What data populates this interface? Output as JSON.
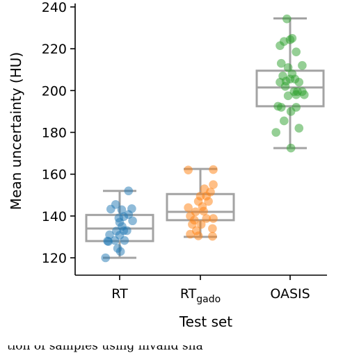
{
  "chart_data": {
    "type": "box-strip",
    "title": "",
    "xlabel": "Test set",
    "ylabel": "Mean uncertainty (HU)",
    "ylim": [
      112,
      242
    ],
    "yticks": [
      120,
      140,
      160,
      180,
      200,
      220,
      240
    ],
    "grid": false,
    "legend": "none",
    "categories": [
      {
        "label": "RT",
        "sub": ""
      },
      {
        "label": "RT",
        "sub": "gado"
      },
      {
        "label": "OASIS",
        "sub": ""
      }
    ],
    "series": [
      {
        "color": "#1f77b4",
        "box": {
          "whisker_low": 120,
          "q1": 128,
          "median": 134,
          "q3": 140.5,
          "whisker_high": 152
        },
        "points": [
          [
            -0.22,
            143.3
          ],
          [
            -0.1,
            145.5
          ],
          [
            0.05,
            143.0
          ],
          [
            0.3,
            143.5
          ],
          [
            0.1,
            139.7
          ],
          [
            0.22,
            140.7
          ],
          [
            -0.02,
            139.0
          ],
          [
            0.0,
            137.0
          ],
          [
            0.32,
            137.7
          ],
          [
            0.06,
            135.0
          ],
          [
            0.1,
            133.0
          ],
          [
            0.18,
            133.0
          ],
          [
            -0.25,
            131.0
          ],
          [
            -0.08,
            132.8
          ],
          [
            0.0,
            130.8
          ],
          [
            -0.12,
            128.3
          ],
          [
            -0.28,
            127.8
          ],
          [
            -0.3,
            128.0
          ],
          [
            0.12,
            128.3
          ],
          [
            -0.05,
            124.5
          ],
          [
            0.02,
            123.0
          ],
          [
            -0.35,
            120.0
          ],
          [
            0.22,
            152.0
          ]
        ]
      },
      {
        "color": "#ff7f0e",
        "box": {
          "whisker_low": 130,
          "q1": 138,
          "median": 142,
          "q3": 150.5,
          "whisker_high": 162.5
        },
        "points": [
          [
            -0.3,
            162.0
          ],
          [
            0.32,
            162.2
          ],
          [
            0.1,
            153.0
          ],
          [
            0.25,
            151.5
          ],
          [
            0.15,
            149.5
          ],
          [
            0.32,
            155.0
          ],
          [
            0.0,
            149.5
          ],
          [
            -0.05,
            147.0
          ],
          [
            0.2,
            147.0
          ],
          [
            -0.3,
            144.0
          ],
          [
            0.05,
            144.5
          ],
          [
            -0.12,
            142.0
          ],
          [
            0.08,
            142.3
          ],
          [
            -0.25,
            140.0
          ],
          [
            0.15,
            138.8
          ],
          [
            0.32,
            138.8
          ],
          [
            -0.2,
            136.0
          ],
          [
            0.02,
            136.0
          ],
          [
            -0.1,
            133.0
          ],
          [
            0.3,
            134.0
          ],
          [
            -0.25,
            131.3
          ],
          [
            -0.05,
            130.5
          ],
          [
            0.3,
            130.3
          ],
          [
            -0.15,
            138.0
          ]
        ]
      },
      {
        "color": "#2ca02c",
        "box": {
          "whisker_low": 172.5,
          "q1": 192.5,
          "median": 201.5,
          "q3": 209.5,
          "whisker_high": 234.5
        },
        "points": [
          [
            -0.08,
            234.3
          ],
          [
            -0.15,
            223.5
          ],
          [
            0.0,
            224.3
          ],
          [
            0.05,
            225.0
          ],
          [
            -0.25,
            221.5
          ],
          [
            0.15,
            218.5
          ],
          [
            -0.22,
            213.0
          ],
          [
            0.3,
            212.0
          ],
          [
            -0.05,
            211.0
          ],
          [
            0.05,
            208.0
          ],
          [
            -0.18,
            207.0
          ],
          [
            0.0,
            205.5
          ],
          [
            -0.25,
            204.0
          ],
          [
            -0.1,
            204.5
          ],
          [
            0.12,
            205.5
          ],
          [
            0.22,
            204.0
          ],
          [
            -0.12,
            202.0
          ],
          [
            0.18,
            199.5
          ],
          [
            0.1,
            199.5
          ],
          [
            0.3,
            199.5
          ],
          [
            -0.05,
            197.5
          ],
          [
            0.15,
            198.0
          ],
          [
            0.35,
            198.0
          ],
          [
            -0.3,
            192.5
          ],
          [
            -0.22,
            192.0
          ],
          [
            0.15,
            192.0
          ],
          [
            0.02,
            190.0
          ],
          [
            -0.15,
            185.5
          ],
          [
            0.22,
            182.0
          ],
          [
            -0.35,
            180.0
          ],
          [
            0.02,
            172.5
          ]
        ]
      }
    ]
  },
  "caption": "tion of samples using invalid sha"
}
